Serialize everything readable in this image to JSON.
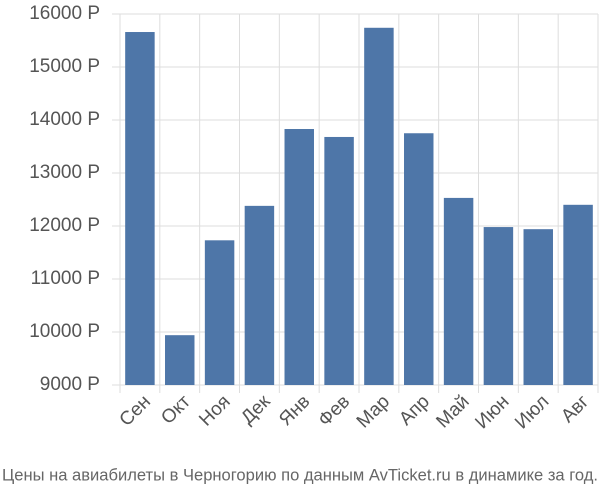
{
  "chart_data": {
    "type": "bar",
    "caption": "Цены на авиабилеты в Черногорию по данным AvTicket.ru в динамике за год.",
    "categories": [
      "Сен",
      "Окт",
      "Ноя",
      "Дек",
      "Янв",
      "Фев",
      "Мар",
      "Апр",
      "Май",
      "Июн",
      "Июл",
      "Авг"
    ],
    "values": [
      15660,
      9940,
      11730,
      12380,
      13830,
      13680,
      15740,
      13750,
      12530,
      11980,
      11940,
      12400
    ],
    "color": "#4e76a8",
    "ylim": [
      9000,
      16000
    ],
    "yticks": [
      {
        "value": 9000,
        "label": "9000 Р"
      },
      {
        "value": 10000,
        "label": "10000 Р"
      },
      {
        "value": 11000,
        "label": "11000 Р"
      },
      {
        "value": 12000,
        "label": "12000 Р"
      },
      {
        "value": 13000,
        "label": "13000 Р"
      },
      {
        "value": 14000,
        "label": "14000 Р"
      },
      {
        "value": 15000,
        "label": "15000 Р"
      },
      {
        "value": 16000,
        "label": "16000 Р"
      }
    ],
    "grid": true
  }
}
